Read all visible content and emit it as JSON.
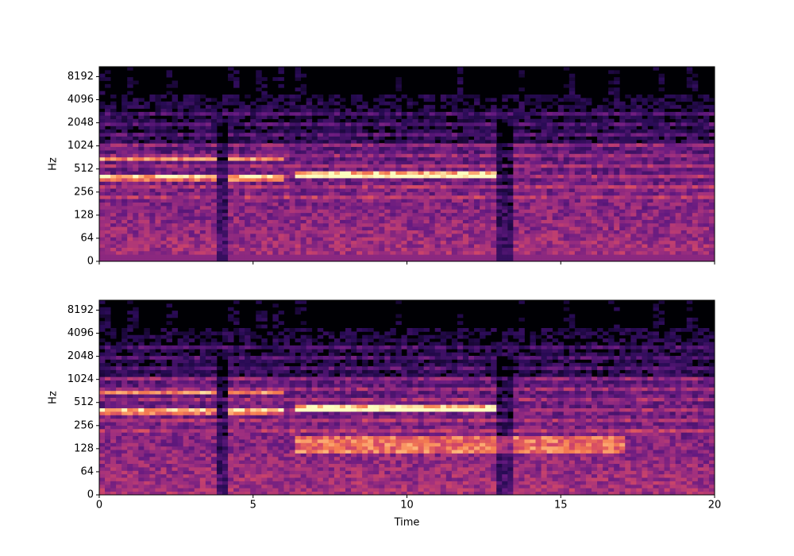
{
  "chart_data": [
    {
      "type": "spectrogram",
      "ylabel": "Hz",
      "xlim": [
        0,
        20
      ],
      "xticks": [
        0,
        5,
        10,
        15,
        20
      ],
      "show_xticklabels": false,
      "ylim": [
        0,
        11025
      ],
      "yscale": "symlog",
      "yticks": [
        0,
        64,
        128,
        256,
        512,
        1024,
        2048,
        4096,
        8192
      ],
      "colormap": "magma"
    },
    {
      "type": "spectrogram",
      "ylabel": "Hz",
      "xlabel": "Time",
      "xlim": [
        0,
        20
      ],
      "xticks": [
        0,
        5,
        10,
        15,
        20
      ],
      "show_xticklabels": true,
      "ylim": [
        0,
        11025
      ],
      "yscale": "symlog",
      "yticks": [
        0,
        64,
        128,
        256,
        512,
        1024,
        2048,
        4096,
        8192
      ],
      "colormap": "magma"
    }
  ]
}
